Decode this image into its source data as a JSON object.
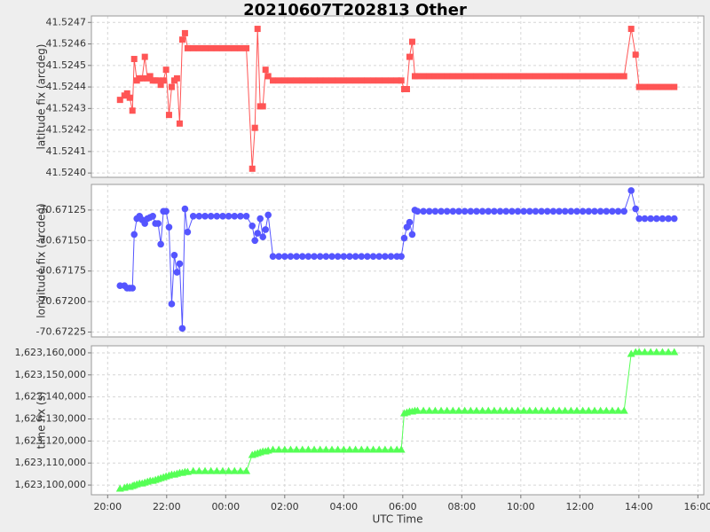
{
  "chart_data": [
    {
      "type": "line",
      "title": "20210607T202813 Other",
      "ylabel": "latitude fix (arcdeg)",
      "grid": true,
      "xlim": [
        19.45,
        40.2
      ],
      "ylim": [
        41.52398,
        41.52473
      ],
      "yticks": [
        {
          "value": 41.524,
          "label": "41.5240"
        },
        41.5241,
        41.5242,
        41.5243,
        41.5244,
        41.5245,
        41.5246,
        41.5247
      ],
      "x": [
        20.42,
        20.57,
        20.66,
        20.75,
        20.84,
        20.9,
        20.99,
        21.08,
        21.17,
        21.26,
        21.35,
        21.44,
        21.53,
        21.62,
        21.71,
        21.8,
        21.89,
        21.98,
        22.08,
        22.17,
        22.26,
        22.35,
        22.44,
        22.53,
        22.62,
        22.71,
        22.9,
        23.1,
        23.3,
        23.5,
        23.7,
        23.9,
        24.1,
        24.3,
        24.5,
        24.7,
        24.9,
        24.99,
        25.08,
        25.17,
        25.26,
        25.35,
        25.44,
        25.6,
        25.8,
        26,
        26.2,
        26.4,
        26.6,
        26.8,
        27,
        27.2,
        27.4,
        27.6,
        27.8,
        28,
        28.2,
        28.4,
        28.6,
        28.8,
        29,
        29.2,
        29.4,
        29.6,
        29.8,
        29.95,
        30.05,
        30.14,
        30.23,
        30.32,
        30.41,
        30.5,
        30.7,
        30.9,
        31.1,
        31.3,
        31.5,
        31.7,
        31.9,
        32.1,
        32.3,
        32.5,
        32.7,
        32.9,
        33.1,
        33.3,
        33.5,
        33.7,
        33.9,
        34.1,
        34.3,
        34.5,
        34.7,
        34.9,
        35.1,
        35.3,
        35.5,
        35.7,
        35.9,
        36.1,
        36.3,
        36.5,
        36.7,
        36.9,
        37.1,
        37.3,
        37.5,
        37.74,
        37.89,
        38.01,
        38.2,
        38.4,
        38.6,
        38.8,
        39.0,
        39.2
      ],
      "series": [
        {
          "color": "#ff5555",
          "marker": "square",
          "values": [
            41.52434,
            41.52436,
            41.52437,
            41.52435,
            41.52429,
            41.52453,
            41.52443,
            41.52444,
            41.52444,
            41.52454,
            41.52444,
            41.52445,
            41.52443,
            41.52443,
            41.52443,
            41.52441,
            41.52443,
            41.52448,
            41.52427,
            41.5244,
            41.52443,
            41.52444,
            41.52423,
            41.52462,
            41.52465,
            41.52458,
            41.52458,
            41.52458,
            41.52458,
            41.52458,
            41.52458,
            41.52458,
            41.52458,
            41.52458,
            41.52458,
            41.52458,
            41.52402,
            41.52421,
            41.52467,
            41.52431,
            41.52431,
            41.52448,
            41.52445,
            41.52443,
            41.52443,
            41.52443,
            41.52443,
            41.52443,
            41.52443,
            41.52443,
            41.52443,
            41.52443,
            41.52443,
            41.52443,
            41.52443,
            41.52443,
            41.52443,
            41.52443,
            41.52443,
            41.52443,
            41.52443,
            41.52443,
            41.52443,
            41.52443,
            41.52443,
            41.52443,
            41.52439,
            41.52439,
            41.52454,
            41.52461,
            41.52445,
            41.52445,
            41.52445,
            41.52445,
            41.52445,
            41.52445,
            41.52445,
            41.52445,
            41.52445,
            41.52445,
            41.52445,
            41.52445,
            41.52445,
            41.52445,
            41.52445,
            41.52445,
            41.52445,
            41.52445,
            41.52445,
            41.52445,
            41.52445,
            41.52445,
            41.52445,
            41.52445,
            41.52445,
            41.52445,
            41.52445,
            41.52445,
            41.52445,
            41.52445,
            41.52445,
            41.52445,
            41.52445,
            41.52445,
            41.52445,
            41.52445,
            41.52445,
            41.52467,
            41.52455,
            41.5244,
            41.5244,
            41.5244,
            41.5244,
            41.5244,
            41.5244,
            41.5244
          ]
        }
      ]
    },
    {
      "type": "line",
      "ylabel": "longitude fix (arcdeg)",
      "grid": true,
      "xlim": [
        19.45,
        40.2
      ],
      "ylim": [
        -70.67229,
        -70.67104
      ],
      "yticks": [
        -70.67125,
        {
          "value": -70.6715,
          "label": "-70.67150"
        },
        -70.67175,
        {
          "value": -70.672,
          "label": "-70.67200"
        },
        -70.67225
      ],
      "x": [
        20.42,
        20.57,
        20.66,
        20.75,
        20.84,
        20.9,
        20.99,
        21.08,
        21.17,
        21.26,
        21.35,
        21.44,
        21.53,
        21.62,
        21.71,
        21.8,
        21.89,
        21.98,
        22.08,
        22.17,
        22.26,
        22.35,
        22.44,
        22.53,
        22.62,
        22.71,
        22.9,
        23.1,
        23.3,
        23.5,
        23.7,
        23.9,
        24.1,
        24.3,
        24.5,
        24.7,
        24.9,
        24.99,
        25.08,
        25.17,
        25.26,
        25.35,
        25.44,
        25.6,
        25.8,
        26,
        26.2,
        26.4,
        26.6,
        26.8,
        27,
        27.2,
        27.4,
        27.6,
        27.8,
        28,
        28.2,
        28.4,
        28.6,
        28.8,
        29,
        29.2,
        29.4,
        29.6,
        29.8,
        29.95,
        30.05,
        30.14,
        30.23,
        30.32,
        30.41,
        30.5,
        30.7,
        30.9,
        31.1,
        31.3,
        31.5,
        31.7,
        31.9,
        32.1,
        32.3,
        32.5,
        32.7,
        32.9,
        33.1,
        33.3,
        33.5,
        33.7,
        33.9,
        34.1,
        34.3,
        34.5,
        34.7,
        34.9,
        35.1,
        35.3,
        35.5,
        35.7,
        35.9,
        36.1,
        36.3,
        36.5,
        36.7,
        36.9,
        37.1,
        37.3,
        37.5,
        37.74,
        37.89,
        38.01,
        38.2,
        38.4,
        38.6,
        38.8,
        39.0,
        39.2
      ],
      "series": [
        {
          "color": "#5555ff",
          "marker": "circle",
          "values": [
            -70.67187,
            -70.67187,
            -70.67189,
            -70.67189,
            -70.67189,
            -70.67145,
            -70.67132,
            -70.6713,
            -70.67133,
            -70.67136,
            -70.67132,
            -70.67131,
            -70.6713,
            -70.67136,
            -70.67136,
            -70.67153,
            -70.67126,
            -70.67126,
            -70.67139,
            -70.67202,
            -70.67162,
            -70.67176,
            -70.67169,
            -70.67222,
            -70.67124,
            -70.67143,
            -70.6713,
            -70.6713,
            -70.6713,
            -70.6713,
            -70.6713,
            -70.6713,
            -70.6713,
            -70.6713,
            -70.6713,
            -70.6713,
            -70.67138,
            -70.6715,
            -70.67144,
            -70.67132,
            -70.67147,
            -70.67141,
            -70.67129,
            -70.67163,
            -70.67163,
            -70.67163,
            -70.67163,
            -70.67163,
            -70.67163,
            -70.67163,
            -70.67163,
            -70.67163,
            -70.67163,
            -70.67163,
            -70.67163,
            -70.67163,
            -70.67163,
            -70.67163,
            -70.67163,
            -70.67163,
            -70.67163,
            -70.67163,
            -70.67163,
            -70.67163,
            -70.67163,
            -70.67163,
            -70.67148,
            -70.67139,
            -70.67135,
            -70.67145,
            -70.67125,
            -70.67126,
            -70.67126,
            -70.67126,
            -70.67126,
            -70.67126,
            -70.67126,
            -70.67126,
            -70.67126,
            -70.67126,
            -70.67126,
            -70.67126,
            -70.67126,
            -70.67126,
            -70.67126,
            -70.67126,
            -70.67126,
            -70.67126,
            -70.67126,
            -70.67126,
            -70.67126,
            -70.67126,
            -70.67126,
            -70.67126,
            -70.67126,
            -70.67126,
            -70.67126,
            -70.67126,
            -70.67126,
            -70.67126,
            -70.67126,
            -70.67126,
            -70.67126,
            -70.67126,
            -70.67126,
            -70.67126,
            -70.67126,
            -70.67109,
            -70.67124,
            -70.67132,
            -70.67132,
            -70.67132,
            -70.67132,
            -70.67132,
            -70.67132,
            -70.67132
          ]
        }
      ]
    },
    {
      "type": "line",
      "ylabel": "time fix (s)",
      "xlabel": "UTC Time",
      "grid": true,
      "xlim": [
        19.45,
        40.2
      ],
      "ylim": [
        1623095600,
        1623163200
      ],
      "yticks": [
        {
          "value": 1623100000,
          "label": "1,623,100,000"
        },
        {
          "value": 1623110000,
          "label": "1,623,110,000"
        },
        {
          "value": 1623120000,
          "label": "1,623,120,000"
        },
        {
          "value": 1623130000,
          "label": "1,623,130,000"
        },
        {
          "value": 1623140000,
          "label": "1,623,140,000"
        },
        {
          "value": 1623150000,
          "label": "1,623,150,000"
        },
        {
          "value": 1623160000,
          "label": "1,623,160,000"
        }
      ],
      "xticks": [
        {
          "value": 20,
          "label": "20:00"
        },
        {
          "value": 22,
          "label": "22:00"
        },
        {
          "value": 24,
          "label": "00:00"
        },
        {
          "value": 26,
          "label": "02:00"
        },
        {
          "value": 28,
          "label": "04:00"
        },
        {
          "value": 30,
          "label": "06:00"
        },
        {
          "value": 32,
          "label": "08:00"
        },
        {
          "value": 34,
          "label": "10:00"
        },
        {
          "value": 36,
          "label": "12:00"
        },
        {
          "value": 38,
          "label": "14:00"
        },
        {
          "value": 40,
          "label": "16:00"
        }
      ],
      "x": [
        20.42,
        20.57,
        20.66,
        20.75,
        20.84,
        20.9,
        20.99,
        21.08,
        21.17,
        21.26,
        21.35,
        21.44,
        21.53,
        21.62,
        21.71,
        21.8,
        21.89,
        21.98,
        22.08,
        22.17,
        22.26,
        22.35,
        22.44,
        22.53,
        22.62,
        22.71,
        22.9,
        23.1,
        23.3,
        23.5,
        23.7,
        23.9,
        24.1,
        24.3,
        24.5,
        24.7,
        24.9,
        24.99,
        25.08,
        25.17,
        25.26,
        25.35,
        25.44,
        25.6,
        25.8,
        26,
        26.2,
        26.4,
        26.6,
        26.8,
        27,
        27.2,
        27.4,
        27.6,
        27.8,
        28,
        28.2,
        28.4,
        28.6,
        28.8,
        29,
        29.2,
        29.4,
        29.6,
        29.8,
        29.95,
        30.05,
        30.14,
        30.23,
        30.32,
        30.41,
        30.5,
        30.7,
        30.9,
        31.1,
        31.3,
        31.5,
        31.7,
        31.9,
        32.1,
        32.3,
        32.5,
        32.7,
        32.9,
        33.1,
        33.3,
        33.5,
        33.7,
        33.9,
        34.1,
        34.3,
        34.5,
        34.7,
        34.9,
        35.1,
        35.3,
        35.5,
        35.7,
        35.9,
        36.1,
        36.3,
        36.5,
        36.7,
        36.9,
        37.1,
        37.3,
        37.5,
        37.74,
        37.89,
        38.01,
        38.2,
        38.4,
        38.6,
        38.8,
        39.0,
        39.2
      ],
      "series": [
        {
          "color": "#55ff55",
          "marker": "triangle",
          "values": [
            1623098400,
            1623098800,
            1623099200,
            1623099200,
            1623099600,
            1623100000,
            1623100400,
            1623100800,
            1623100800,
            1623101200,
            1623101600,
            1623102000,
            1623102000,
            1623102400,
            1623102800,
            1623103200,
            1623103600,
            1623104000,
            1623104400,
            1623104800,
            1623104800,
            1623105200,
            1623105600,
            1623105600,
            1623106000,
            1623106000,
            1623106400,
            1623106400,
            1623106400,
            1623106400,
            1623106400,
            1623106400,
            1623106400,
            1623106400,
            1623106400,
            1623106400,
            1623113700,
            1623114100,
            1623114500,
            1623114900,
            1623115300,
            1623115300,
            1623115700,
            1623116100,
            1623116100,
            1623116100,
            1623116100,
            1623116100,
            1623116100,
            1623116100,
            1623116100,
            1623116100,
            1623116100,
            1623116100,
            1623116100,
            1623116100,
            1623116100,
            1623116100,
            1623116100,
            1623116100,
            1623116100,
            1623116100,
            1623116100,
            1623116100,
            1623116100,
            1623116100,
            1623132600,
            1623133000,
            1623133400,
            1623133400,
            1623133800,
            1623133800,
            1623133800,
            1623133800,
            1623133800,
            1623133800,
            1623133800,
            1623133800,
            1623133800,
            1623133800,
            1623133800,
            1623133800,
            1623133800,
            1623133800,
            1623133800,
            1623133800,
            1623133800,
            1623133800,
            1623133800,
            1623133800,
            1623133800,
            1623133800,
            1623133800,
            1623133800,
            1623133800,
            1623133800,
            1623133800,
            1623133800,
            1623133800,
            1623133800,
            1623133800,
            1623133800,
            1623133800,
            1623133800,
            1623133800,
            1623133800,
            1623133800,
            1623159600,
            1623160400,
            1623160400,
            1623160400,
            1623160400,
            1623160400,
            1623160400,
            1623160400,
            1623160400
          ]
        }
      ]
    }
  ]
}
